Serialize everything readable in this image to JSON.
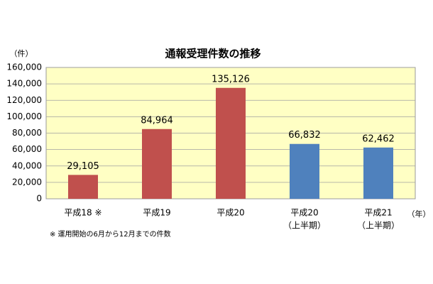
{
  "chart_data": {
    "type": "bar",
    "title": "通報受理件数の推移",
    "y_unit": "（件）",
    "x_unit": "（年）",
    "note": "※ 運用開始の6月から12月までの件数",
    "categories": [
      [
        "平成18 ※"
      ],
      [
        "平成19"
      ],
      [
        "平成20"
      ],
      [
        "平成20",
        "（上半期）"
      ],
      [
        "平成21",
        "（上半期）"
      ]
    ],
    "values": [
      29105,
      84964,
      135126,
      66832,
      62462
    ],
    "value_labels": [
      "29,105",
      "84,964",
      "135,126",
      "66,832",
      "62,462"
    ],
    "colors": [
      "#c0504d",
      "#c0504d",
      "#c0504d",
      "#4f81bd",
      "#4f81bd"
    ],
    "ylim": [
      0,
      160000
    ],
    "yticks": [
      0,
      {
        "value": 20000,
        "label": "20,000"
      },
      {
        "value": 40000,
        "label": "40,000"
      },
      {
        "value": 60000,
        "label": "60,000"
      },
      {
        "value": 80000,
        "label": "80,000"
      },
      {
        "value": 100000,
        "label": "100,000"
      },
      {
        "value": 120000,
        "label": "120,000"
      },
      {
        "value": 140000,
        "label": "140,000"
      },
      {
        "value": 160000,
        "label": "160,000"
      }
    ],
    "grid": true,
    "background": "#ffffc4"
  }
}
